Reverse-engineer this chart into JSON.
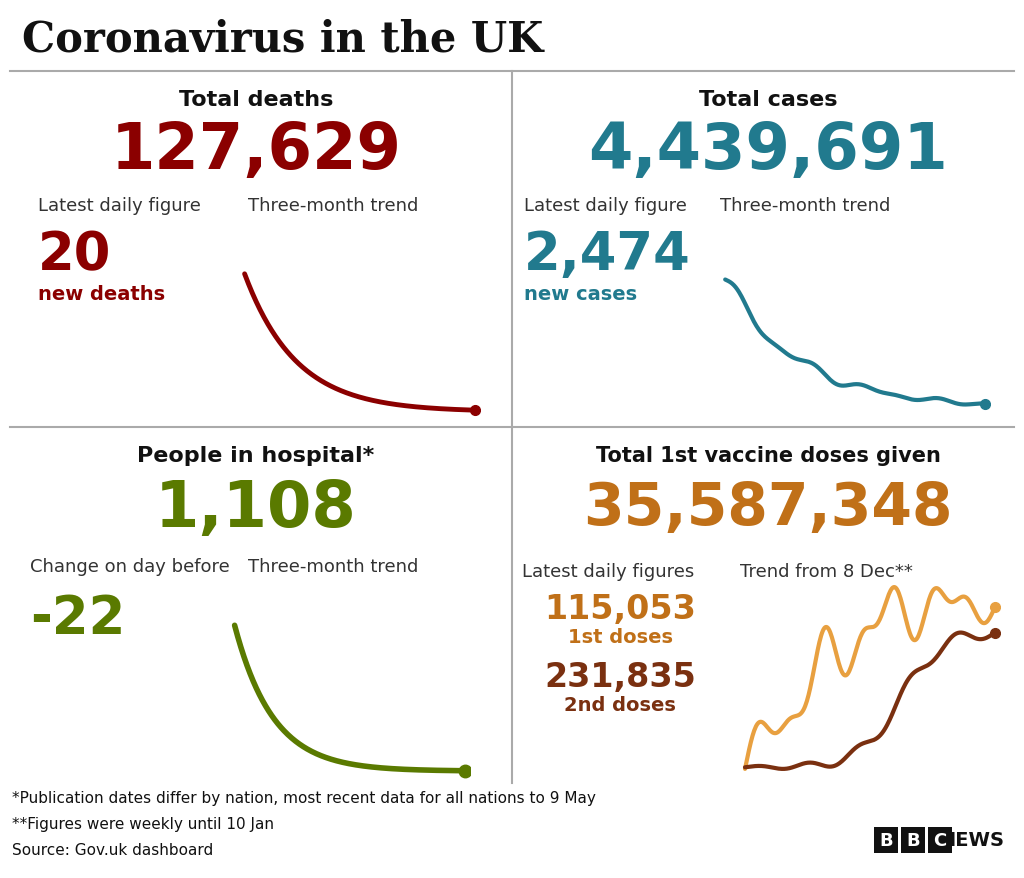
{
  "title": "Coronavirus in the UK",
  "background_color": "#ffffff",
  "title_color": "#111111",
  "title_fontsize": 30,
  "panels": [
    {
      "id": "deaths",
      "section_title": "Total deaths",
      "total_value": "127,629",
      "total_color": "#8b0000",
      "sub_label1": "Latest daily figure",
      "sub_label2": "Three-month trend",
      "daily_value": "20",
      "daily_color": "#8b0000",
      "daily_sublabel": "new deaths",
      "daily_sublabel_color": "#8b0000",
      "trend_color": "#8b0000"
    },
    {
      "id": "cases",
      "section_title": "Total cases",
      "total_value": "4,439,691",
      "total_color": "#217a8e",
      "sub_label1": "Latest daily figure",
      "sub_label2": "Three-month trend",
      "daily_value": "2,474",
      "daily_color": "#217a8e",
      "daily_sublabel": "new cases",
      "daily_sublabel_color": "#217a8e",
      "trend_color": "#217a8e"
    },
    {
      "id": "hospital",
      "section_title": "People in hospital*",
      "total_value": "1,108",
      "total_color": "#5a7a00",
      "sub_label1": "Change on day before",
      "sub_label2": "Three-month trend",
      "daily_value": "-22",
      "daily_color": "#5a7a00",
      "trend_color": "#5a7a00"
    },
    {
      "id": "vaccine",
      "section_title": "Total 1st vaccine doses given",
      "total_value": "35,587,348",
      "total_color": "#c07018",
      "sub_label1": "Latest daily figures",
      "sub_label2": "Trend from 8 Dec**",
      "daily_value1": "115,053",
      "daily_color1": "#c07018",
      "daily_sublabel1": "1st doses",
      "daily_value2": "231,835",
      "daily_color2": "#7a3010",
      "daily_sublabel2": "2nd doses",
      "trend_color1": "#e8a040",
      "trend_color2": "#7a3010"
    }
  ],
  "footnotes": [
    "*Publication dates differ by nation, most recent data for all nations to 9 May",
    "**Figures were weekly until 10 Jan",
    "Source: Gov.uk dashboard"
  ],
  "footnote_color": "#111111",
  "footnote_fontsize": 11,
  "divider_color": "#aaaaaa",
  "label_fontsize": 13,
  "section_title_fontsize": 16,
  "total_value_fontsize": 46,
  "daily_value_fontsize": 38
}
